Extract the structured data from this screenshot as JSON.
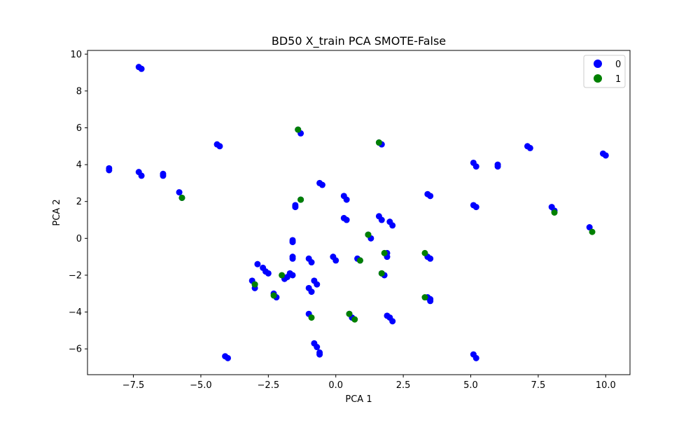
{
  "chart_data": {
    "type": "scatter",
    "title": "BD50 X_train PCA SMOTE-False",
    "xlabel": "PCA 1",
    "ylabel": "PCA 2",
    "xlim": [
      -9.2,
      10.9
    ],
    "ylim": [
      -7.4,
      10.2
    ],
    "xticks": [
      -7.5,
      -5.0,
      -2.5,
      0.0,
      2.5,
      5.0,
      7.5,
      10.0
    ],
    "xtick_labels": [
      "−7.5",
      "−5.0",
      "−2.5",
      "0.0",
      "2.5",
      "5.0",
      "7.5",
      "10.0"
    ],
    "yticks": [
      -6,
      -4,
      -2,
      0,
      2,
      4,
      6,
      8,
      10
    ],
    "ytick_labels": [
      "−6",
      "−4",
      "−2",
      "0",
      "2",
      "4",
      "6",
      "8",
      "10"
    ],
    "grid": false,
    "legend_position": "top-right",
    "series": [
      {
        "name": "0",
        "color": "#0000ff",
        "points": [
          [
            -7.3,
            9.3
          ],
          [
            -7.2,
            9.2
          ],
          [
            -8.4,
            3.8
          ],
          [
            -8.4,
            3.7
          ],
          [
            -7.3,
            3.6
          ],
          [
            -7.2,
            3.4
          ],
          [
            -6.4,
            3.5
          ],
          [
            -6.4,
            3.4
          ],
          [
            -5.8,
            2.5
          ],
          [
            -5.7,
            2.2
          ],
          [
            -4.4,
            5.1
          ],
          [
            -4.3,
            5.0
          ],
          [
            -1.4,
            5.9
          ],
          [
            -1.3,
            5.7
          ],
          [
            -1.5,
            1.8
          ],
          [
            -1.5,
            1.7
          ],
          [
            -1.3,
            2.1
          ],
          [
            -0.6,
            3.0
          ],
          [
            -0.5,
            2.9
          ],
          [
            0.3,
            2.3
          ],
          [
            0.4,
            2.1
          ],
          [
            0.3,
            1.1
          ],
          [
            0.4,
            1.0
          ],
          [
            1.6,
            5.2
          ],
          [
            1.7,
            5.1
          ],
          [
            1.6,
            1.2
          ],
          [
            1.7,
            1.0
          ],
          [
            2.0,
            0.9
          ],
          [
            2.1,
            0.7
          ],
          [
            1.2,
            0.2
          ],
          [
            1.3,
            0.0
          ],
          [
            -1.6,
            -0.1
          ],
          [
            -1.6,
            -0.2
          ],
          [
            -1.6,
            -1.0
          ],
          [
            -1.6,
            -1.1
          ],
          [
            -1.0,
            -1.1
          ],
          [
            -0.9,
            -1.3
          ],
          [
            -0.1,
            -1.0
          ],
          [
            0.0,
            -1.2
          ],
          [
            0.8,
            -1.1
          ],
          [
            0.9,
            -1.2
          ],
          [
            1.9,
            -0.8
          ],
          [
            1.9,
            -1.0
          ],
          [
            1.7,
            -1.9
          ],
          [
            1.8,
            -2.0
          ],
          [
            3.5,
            -1.1
          ],
          [
            3.4,
            -1.0
          ],
          [
            3.4,
            2.4
          ],
          [
            3.5,
            2.3
          ],
          [
            -1.7,
            -1.9
          ],
          [
            -1.6,
            -2.0
          ],
          [
            -1.8,
            -2.1
          ],
          [
            -1.9,
            -2.2
          ],
          [
            -2.9,
            -1.4
          ],
          [
            -2.7,
            -1.6
          ],
          [
            -2.6,
            -1.8
          ],
          [
            -2.5,
            -1.9
          ],
          [
            -3.1,
            -2.3
          ],
          [
            -3.0,
            -2.5
          ],
          [
            -3.0,
            -2.7
          ],
          [
            -2.3,
            -3.0
          ],
          [
            -2.2,
            -3.2
          ],
          [
            -1.0,
            -2.7
          ],
          [
            -0.9,
            -2.9
          ],
          [
            -0.8,
            -2.3
          ],
          [
            -0.7,
            -2.5
          ],
          [
            -1.0,
            -4.1
          ],
          [
            0.5,
            -4.1
          ],
          [
            0.6,
            -4.3
          ],
          [
            1.9,
            -4.2
          ],
          [
            2.0,
            -4.3
          ],
          [
            2.1,
            -4.5
          ],
          [
            3.4,
            -3.2
          ],
          [
            3.5,
            -3.3
          ],
          [
            3.5,
            -3.4
          ],
          [
            -0.8,
            -5.7
          ],
          [
            -0.7,
            -5.9
          ],
          [
            -0.6,
            -6.2
          ],
          [
            -0.6,
            -6.3
          ],
          [
            -4.1,
            -6.4
          ],
          [
            -4.0,
            -6.5
          ],
          [
            5.1,
            -6.3
          ],
          [
            5.2,
            -6.5
          ],
          [
            5.1,
            4.1
          ],
          [
            5.2,
            3.9
          ],
          [
            5.1,
            1.8
          ],
          [
            5.2,
            1.7
          ],
          [
            6.0,
            4.0
          ],
          [
            6.0,
            3.9
          ],
          [
            7.1,
            5.0
          ],
          [
            7.2,
            4.9
          ],
          [
            8.0,
            1.7
          ],
          [
            8.1,
            1.5
          ],
          [
            9.4,
            0.6
          ],
          [
            9.9,
            4.6
          ],
          [
            10.0,
            4.5
          ]
        ]
      },
      {
        "name": "1",
        "color": "#008000",
        "points": [
          [
            -5.7,
            2.2
          ],
          [
            -1.4,
            5.9
          ],
          [
            -1.3,
            2.1
          ],
          [
            1.6,
            5.2
          ],
          [
            1.2,
            0.2
          ],
          [
            0.9,
            -1.2
          ],
          [
            1.8,
            -0.8
          ],
          [
            3.3,
            -0.8
          ],
          [
            1.7,
            -1.9
          ],
          [
            -2.0,
            -2.0
          ],
          [
            -3.0,
            -2.5
          ],
          [
            -2.3,
            -3.1
          ],
          [
            -0.9,
            -4.3
          ],
          [
            0.5,
            -4.1
          ],
          [
            0.7,
            -4.4
          ],
          [
            3.3,
            -3.2
          ],
          [
            8.1,
            1.4
          ],
          [
            9.5,
            0.35
          ]
        ]
      }
    ]
  }
}
